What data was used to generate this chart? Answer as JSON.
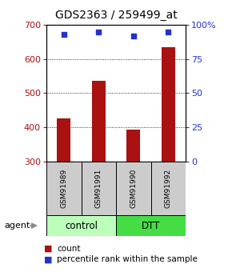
{
  "title": "GDS2363 / 259499_at",
  "samples": [
    "GSM91989",
    "GSM91991",
    "GSM91990",
    "GSM91992"
  ],
  "bar_values": [
    425,
    537,
    393,
    635
  ],
  "percentile_values": [
    93,
    95,
    92,
    95
  ],
  "ylim_left": [
    300,
    700
  ],
  "ylim_right": [
    0,
    100
  ],
  "yticks_left": [
    300,
    400,
    500,
    600,
    700
  ],
  "yticks_right": [
    0,
    25,
    50,
    75,
    100
  ],
  "bar_color": "#aa1111",
  "dot_color": "#2233cc",
  "bar_bottom": 300,
  "groups": [
    {
      "label": "control",
      "indices": [
        0,
        1
      ],
      "color": "#bbffbb"
    },
    {
      "label": "DTT",
      "indices": [
        2,
        3
      ],
      "color": "#44dd44"
    }
  ],
  "group_row_label": "agent",
  "legend_count_label": "count",
  "legend_pct_label": "percentile rank within the sample",
  "sample_box_color": "#cccccc",
  "title_fontsize": 10,
  "tick_fontsize": 8,
  "bar_width": 0.4
}
